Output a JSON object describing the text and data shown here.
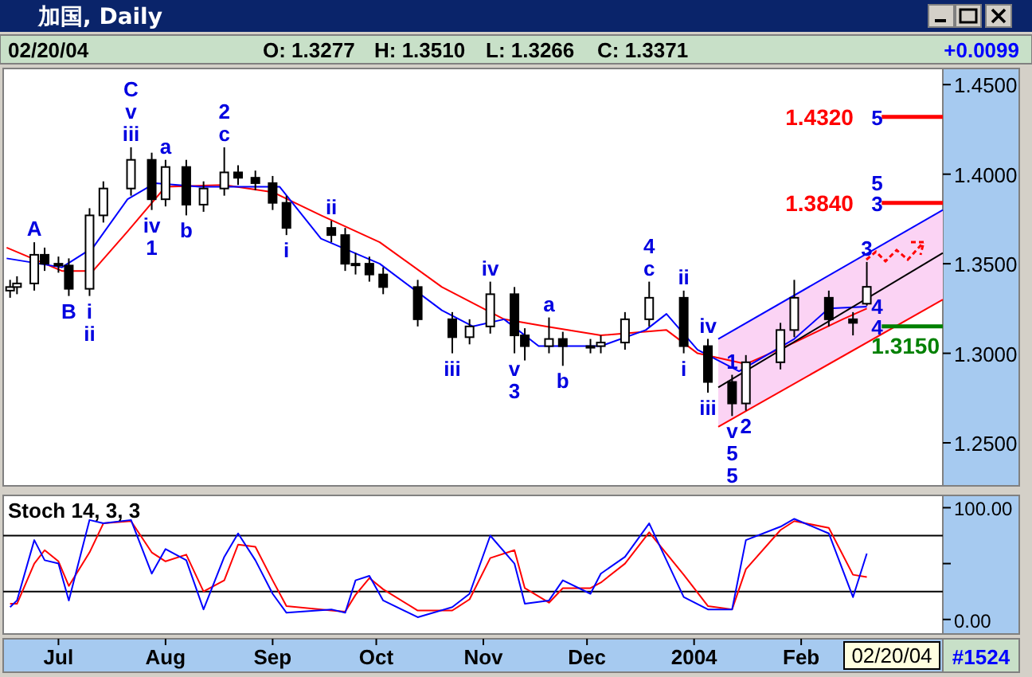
{
  "chart_data": [
    {
      "type": "candlestick",
      "title": "加国, Daily",
      "tick_labels": "y",
      "xlim": [
        "2003-06-15",
        "2004-03-13"
      ],
      "ylim": [
        1.226,
        1.459
      ],
      "yticks": [
        {
          "value": 1.25,
          "label": "1.2500"
        },
        {
          "value": 1.3,
          "label": "1.3000"
        },
        {
          "value": 1.35,
          "label": "1.3500"
        },
        {
          "value": 1.4,
          "label": "1.4000"
        },
        {
          "value": 1.45,
          "label": "1.4500"
        }
      ],
      "x": [
        "2003-06-17",
        "2003-06-19",
        "2003-06-24",
        "2003-06-27",
        "2003-07-01",
        "2003-07-04",
        "2003-07-10",
        "2003-07-14",
        "2003-07-22",
        "2003-07-28",
        "2003-08-01",
        "2003-08-07",
        "2003-08-12",
        "2003-08-18",
        "2003-08-22",
        "2003-08-27",
        "2003-09-01",
        "2003-09-05",
        "2003-09-18",
        "2003-09-22",
        "2003-09-25",
        "2003-09-29",
        "2003-10-03",
        "2003-10-13",
        "2003-10-23",
        "2003-10-28",
        "2003-11-03",
        "2003-11-10",
        "2003-11-13",
        "2003-11-20",
        "2003-11-24",
        "2003-12-02",
        "2003-12-05",
        "2003-12-12",
        "2003-12-19",
        "2003-12-29",
        "2004-01-05",
        "2004-01-12",
        "2004-01-16",
        "2004-01-26",
        "2004-01-30",
        "2004-02-09",
        "2004-02-16",
        "2004-02-20"
      ],
      "ohlc": [
        [
          1.335,
          1.341,
          1.331,
          1.337
        ],
        [
          1.337,
          1.343,
          1.333,
          1.339
        ],
        [
          1.339,
          1.362,
          1.335,
          1.355
        ],
        [
          1.355,
          1.359,
          1.346,
          1.35
        ],
        [
          1.35,
          1.354,
          1.345,
          1.349
        ],
        [
          1.349,
          1.353,
          1.332,
          1.336
        ],
        [
          1.336,
          1.381,
          1.332,
          1.377
        ],
        [
          1.377,
          1.396,
          1.373,
          1.392
        ],
        [
          1.392,
          1.415,
          1.388,
          1.408
        ],
        [
          1.408,
          1.412,
          1.38,
          1.386
        ],
        [
          1.386,
          1.408,
          1.382,
          1.404
        ],
        [
          1.404,
          1.408,
          1.377,
          1.383
        ],
        [
          1.383,
          1.396,
          1.379,
          1.392
        ],
        [
          1.392,
          1.415,
          1.388,
          1.401
        ],
        [
          1.401,
          1.405,
          1.394,
          1.398
        ],
        [
          1.398,
          1.402,
          1.391,
          1.395
        ],
        [
          1.395,
          1.399,
          1.38,
          1.384
        ],
        [
          1.384,
          1.388,
          1.366,
          1.37
        ],
        [
          1.37,
          1.374,
          1.362,
          1.366
        ],
        [
          1.366,
          1.37,
          1.346,
          1.35
        ],
        [
          1.35,
          1.356,
          1.344,
          1.35
        ],
        [
          1.35,
          1.354,
          1.34,
          1.344
        ],
        [
          1.344,
          1.348,
          1.333,
          1.337
        ],
        [
          1.337,
          1.341,
          1.315,
          1.319
        ],
        [
          1.319,
          1.323,
          1.3,
          1.309
        ],
        [
          1.309,
          1.319,
          1.305,
          1.315
        ],
        [
          1.315,
          1.34,
          1.311,
          1.333
        ],
        [
          1.333,
          1.337,
          1.3,
          1.31
        ],
        [
          1.31,
          1.314,
          1.296,
          1.304
        ],
        [
          1.304,
          1.32,
          1.3,
          1.308
        ],
        [
          1.308,
          1.312,
          1.293,
          1.304
        ],
        [
          1.304,
          1.308,
          1.3,
          1.304
        ],
        [
          1.304,
          1.31,
          1.3,
          1.306
        ],
        [
          1.306,
          1.323,
          1.302,
          1.319
        ],
        [
          1.319,
          1.34,
          1.315,
          1.331
        ],
        [
          1.331,
          1.335,
          1.3,
          1.304
        ],
        [
          1.304,
          1.308,
          1.278,
          1.284
        ],
        [
          1.284,
          1.288,
          1.265,
          1.272
        ],
        [
          1.272,
          1.299,
          1.268,
          1.295
        ],
        [
          1.295,
          1.317,
          1.291,
          1.313
        ],
        [
          1.313,
          1.341,
          1.309,
          1.331
        ],
        [
          1.331,
          1.335,
          1.315,
          1.319
        ],
        [
          1.319,
          1.323,
          1.31,
          1.317
        ],
        [
          1.3277,
          1.351,
          1.3266,
          1.3371
        ]
      ],
      "series": [
        {
          "type": "line",
          "color": "#ff0000",
          "x": [
            "2003-06-16",
            "2003-07-02",
            "2003-07-11",
            "2003-07-21",
            "2003-08-01",
            "2003-08-18",
            "2003-09-01",
            "2003-09-15",
            "2003-10-02",
            "2003-10-20",
            "2003-11-07",
            "2003-11-19",
            "2003-12-05",
            "2003-12-24",
            "2004-01-02",
            "2004-01-16",
            "2004-01-30",
            "2004-02-13",
            "2004-02-20"
          ],
          "values": [
            1.359,
            1.346,
            1.346,
            1.368,
            1.393,
            1.394,
            1.39,
            1.377,
            1.362,
            1.337,
            1.319,
            1.315,
            1.31,
            1.313,
            1.3,
            1.294,
            1.306,
            1.319,
            1.325
          ]
        },
        {
          "type": "line",
          "color": "#0000ff",
          "x": [
            "2003-06-16",
            "2003-07-02",
            "2003-07-11",
            "2003-07-21",
            "2003-07-29",
            "2003-08-11",
            "2003-08-22",
            "2003-09-03",
            "2003-09-15",
            "2003-10-02",
            "2003-10-20",
            "2003-10-29",
            "2003-11-07",
            "2003-11-17",
            "2003-12-05",
            "2003-12-18",
            "2003-12-24",
            "2004-01-02",
            "2004-01-14",
            "2004-01-30",
            "2004-02-09",
            "2004-02-20"
          ],
          "values": [
            1.353,
            1.348,
            1.359,
            1.386,
            1.395,
            1.393,
            1.393,
            1.393,
            1.364,
            1.35,
            1.324,
            1.315,
            1.319,
            1.304,
            1.304,
            1.313,
            1.322,
            1.302,
            1.29,
            1.308,
            1.325,
            1.326
          ]
        },
        {
          "type": "line",
          "color": "#000000",
          "x": [
            "2004-01-08",
            "2004-03-13"
          ],
          "values": [
            1.281,
            1.356
          ],
          "lower": [
            1.259,
            1.33
          ],
          "upper": [
            1.308,
            1.38
          ]
        }
      ],
      "ref_lines": [
        {
          "axis": "y",
          "value": 1.432,
          "label": "1.4320",
          "color": "#ff0000"
        },
        {
          "axis": "y",
          "value": 1.384,
          "label": "1.3840",
          "color": "#ff0000"
        },
        {
          "axis": "y",
          "value": 1.315,
          "label": "1.3150",
          "color": "#008000"
        }
      ],
      "annotations": [
        "02/20/04",
        "O: 1.3277",
        "H: 1.3510",
        "L: 1.3266",
        "C: 1.3371",
        "+0.0099",
        {
          "text": "A",
          "x": "2003-06-24",
          "y": 1.362
        },
        {
          "text": "B",
          "x": "2003-07-04",
          "y": 1.332
        },
        {
          "text": "i",
          "x": "2003-07-10",
          "y": 1.332
        },
        {
          "text": "ii",
          "x": "2003-07-10",
          "y": 1.332
        },
        {
          "text": "iii",
          "x": "2003-07-22",
          "y": 1.415
        },
        {
          "text": "v",
          "x": "2003-07-22",
          "y": 1.415
        },
        {
          "text": "C",
          "x": "2003-07-22",
          "y": 1.415
        },
        {
          "text": "iv",
          "x": "2003-07-28",
          "y": 1.38
        },
        {
          "text": "1",
          "x": "2003-07-28",
          "y": 1.38
        },
        {
          "text": "a",
          "x": "2003-08-01",
          "y": 1.408
        },
        {
          "text": "b",
          "x": "2003-08-07",
          "y": 1.377
        },
        {
          "text": "c",
          "x": "2003-08-18",
          "y": 1.415
        },
        {
          "text": "2",
          "x": "2003-08-18",
          "y": 1.415
        },
        {
          "text": "i",
          "x": "2003-09-05",
          "y": 1.366
        },
        {
          "text": "ii",
          "x": "2003-09-18",
          "y": 1.374
        },
        {
          "text": "iii",
          "x": "2003-10-23",
          "y": 1.3
        },
        {
          "text": "iv",
          "x": "2003-11-03",
          "y": 1.34
        },
        {
          "text": "v",
          "x": "2003-11-10",
          "y": 1.3
        },
        {
          "text": "3",
          "x": "2003-11-10",
          "y": 1.3
        },
        {
          "text": "a",
          "x": "2003-11-20",
          "y": 1.32
        },
        {
          "text": "b",
          "x": "2003-11-24",
          "y": 1.293
        },
        {
          "text": "c",
          "x": "2003-12-19",
          "y": 1.34
        },
        {
          "text": "4",
          "x": "2003-12-19",
          "y": 1.34
        },
        {
          "text": "ii",
          "x": "2003-12-29",
          "y": 1.335
        },
        {
          "text": "i",
          "x": "2003-12-29",
          "y": 1.3
        },
        {
          "text": "iv",
          "x": "2004-01-05",
          "y": 1.308
        },
        {
          "text": "iii",
          "x": "2004-01-05",
          "y": 1.278
        },
        {
          "text": "1",
          "x": "2004-01-12",
          "y": 1.288
        },
        {
          "text": "v",
          "x": "2004-01-12",
          "y": 1.265
        },
        {
          "text": "5",
          "x": "2004-01-12",
          "y": 1.265
        },
        {
          "text": "5",
          "x": "2004-01-12",
          "y": 1.265
        },
        {
          "text": "2",
          "x": "2004-01-16",
          "y": 1.268
        },
        {
          "text": "3",
          "x": "2004-02-20",
          "y": 1.351
        },
        {
          "text": "5",
          "x": "2004-02-23",
          "y": 1.432
        },
        {
          "text": "3",
          "x": "2004-02-23",
          "y": 1.384
        },
        {
          "text": "5",
          "x": "2004-02-23",
          "y": 1.384
        },
        {
          "text": "4",
          "x": "2004-02-23",
          "y": 1.315
        },
        {
          "text": "4",
          "x": "2004-02-23",
          "y": 1.315
        }
      ]
    },
    {
      "type": "line",
      "title": "Stoch 14, 3, 3",
      "xlim": [
        "2003-06-15",
        "2004-03-13"
      ],
      "ylim": [
        -13,
        111
      ],
      "yticks": [
        {
          "value": 0,
          "label": "0.00"
        },
        {
          "value": 50,
          "label": null
        },
        {
          "value": 100,
          "label": "100.00"
        }
      ],
      "xticks": [
        {
          "value": "2003-07-01",
          "label": "Jul"
        },
        {
          "value": "2003-08-01",
          "label": "Aug"
        },
        {
          "value": "2003-09-01",
          "label": "Sep"
        },
        {
          "value": "2003-10-01",
          "label": "Oct"
        },
        {
          "value": "2003-11-01",
          "label": "Nov"
        },
        {
          "value": "2003-12-01",
          "label": "Dec"
        },
        {
          "value": "2004-01-01",
          "label": "2004"
        },
        {
          "value": "2004-02-01",
          "label": "Feb"
        }
      ],
      "x": [
        "2003-06-17",
        "2003-06-19",
        "2003-06-24",
        "2003-06-27",
        "2003-07-01",
        "2003-07-04",
        "2003-07-10",
        "2003-07-14",
        "2003-07-22",
        "2003-07-28",
        "2003-08-01",
        "2003-08-07",
        "2003-08-12",
        "2003-08-18",
        "2003-08-22",
        "2003-08-27",
        "2003-09-01",
        "2003-09-05",
        "2003-09-18",
        "2003-09-22",
        "2003-09-25",
        "2003-09-29",
        "2003-10-03",
        "2003-10-13",
        "2003-10-23",
        "2003-10-28",
        "2003-11-03",
        "2003-11-10",
        "2003-11-13",
        "2003-11-20",
        "2003-11-24",
        "2003-12-02",
        "2003-12-05",
        "2003-12-12",
        "2003-12-19",
        "2003-12-29",
        "2004-01-05",
        "2004-01-12",
        "2004-01-16",
        "2004-01-26",
        "2004-01-30",
        "2004-02-09",
        "2004-02-16",
        "2004-02-20"
      ],
      "series": [
        {
          "color": "#ff0000",
          "values": [
            14,
            14,
            50,
            62,
            52,
            30,
            60,
            86,
            88,
            60,
            52,
            58,
            25,
            35,
            67,
            65,
            35,
            12,
            8,
            7,
            22,
            37,
            27,
            8,
            8,
            18,
            55,
            62,
            28,
            15,
            28,
            28,
            33,
            50,
            78,
            40,
            12,
            9,
            45,
            80,
            88,
            82,
            40,
            38
          ]
        },
        {
          "color": "#0000ff",
          "values": [
            11,
            17,
            71,
            53,
            50,
            17,
            89,
            86,
            89,
            41,
            63,
            53,
            9,
            56,
            77,
            53,
            23,
            6,
            9,
            6,
            35,
            39,
            17,
            2,
            11,
            23,
            75,
            50,
            14,
            17,
            35,
            23,
            41,
            56,
            86,
            20,
            9,
            9,
            71,
            83,
            90,
            77,
            20,
            59
          ]
        }
      ],
      "ref_lines": [
        {
          "axis": "y",
          "value": 75,
          "color": "#000000"
        },
        {
          "axis": "y",
          "value": 25,
          "color": "#000000"
        }
      ],
      "annotations": [
        "02/20/04",
        "#1524"
      ]
    }
  ]
}
